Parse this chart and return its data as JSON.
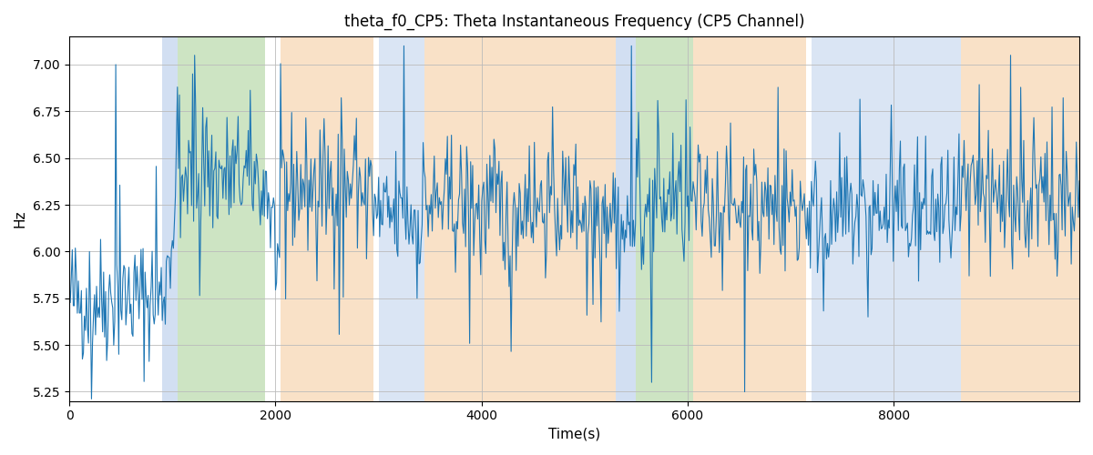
{
  "title": "theta_f0_CP5: Theta Instantaneous Frequency (CP5 Channel)",
  "xlabel": "Time(s)",
  "ylabel": "Hz",
  "xlim": [
    0,
    9800
  ],
  "ylim": [
    5.2,
    7.15
  ],
  "line_color": "#1f77b4",
  "line_width": 0.8,
  "background_color": "#ffffff",
  "grid": true,
  "seed": 42,
  "n_points": 1000,
  "bands": [
    {
      "start": 900,
      "end": 1050,
      "color": "#aec6e8",
      "alpha": 0.55
    },
    {
      "start": 1050,
      "end": 1900,
      "color": "#90c47a",
      "alpha": 0.45
    },
    {
      "start": 2050,
      "end": 2950,
      "color": "#f5c99a",
      "alpha": 0.55
    },
    {
      "start": 3000,
      "end": 3450,
      "color": "#aec6e8",
      "alpha": 0.45
    },
    {
      "start": 3450,
      "end": 5300,
      "color": "#f5c99a",
      "alpha": 0.55
    },
    {
      "start": 5300,
      "end": 5500,
      "color": "#aec6e8",
      "alpha": 0.55
    },
    {
      "start": 5500,
      "end": 6050,
      "color": "#90c47a",
      "alpha": 0.45
    },
    {
      "start": 6050,
      "end": 7150,
      "color": "#f5c99a",
      "alpha": 0.55
    },
    {
      "start": 7200,
      "end": 8650,
      "color": "#aec6e8",
      "alpha": 0.45
    },
    {
      "start": 8650,
      "end": 9800,
      "color": "#f5c99a",
      "alpha": 0.55
    }
  ]
}
